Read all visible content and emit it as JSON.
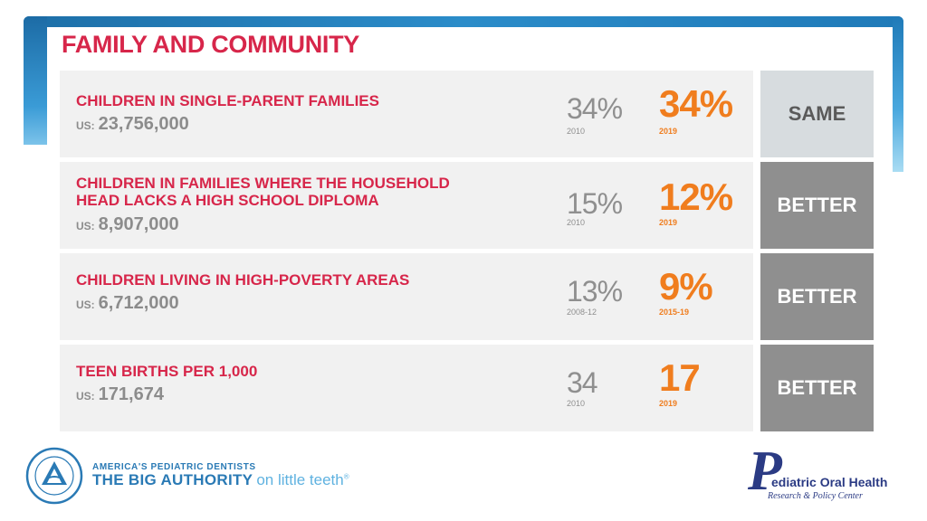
{
  "title": "FAMILY AND COMMUNITY",
  "us_prefix": "US:",
  "rows": [
    {
      "label": "CHILDREN IN SINGLE-PARENT FAMILIES",
      "us_value": "23,756,000",
      "old_value": "34%",
      "old_year": "2010",
      "new_value": "34%",
      "new_year": "2019",
      "status": "SAME"
    },
    {
      "label": "CHILDREN IN FAMILIES WHERE THE HOUSEHOLD HEAD LACKS A HIGH SCHOOL DIPLOMA",
      "us_value": "8,907,000",
      "old_value": "15%",
      "old_year": "2010",
      "new_value": "12%",
      "new_year": "2019",
      "status": "BETTER"
    },
    {
      "label": "CHILDREN LIVING IN HIGH-POVERTY AREAS",
      "us_value": "6,712,000",
      "old_value": "13%",
      "old_year": "2008-12",
      "new_value": "9%",
      "new_year": "2015-19",
      "status": "BETTER"
    },
    {
      "label": "TEEN BIRTHS PER 1,000",
      "us_value": "171,674",
      "old_value": "34",
      "old_year": "2010",
      "new_value": "17",
      "new_year": "2019",
      "status": "BETTER"
    }
  ],
  "footer": {
    "aapd_tagline_top": "AMERICA'S PEDIATRIC DENTISTS",
    "aapd_tagline_strong": "THE BIG AUTHORITY",
    "aapd_tagline_soft": "on little teeth",
    "aapd_trademark": "®",
    "poh_initial": "P",
    "poh_name": "ediatric Oral Health",
    "poh_sub": "Research & Policy Center"
  },
  "colors": {
    "accent_red": "#d7264a",
    "accent_orange": "#f07d1e",
    "neutral_gray": "#8f8f8f",
    "brand_blue": "#2a7ab5",
    "brand_navy": "#2b3b84"
  }
}
